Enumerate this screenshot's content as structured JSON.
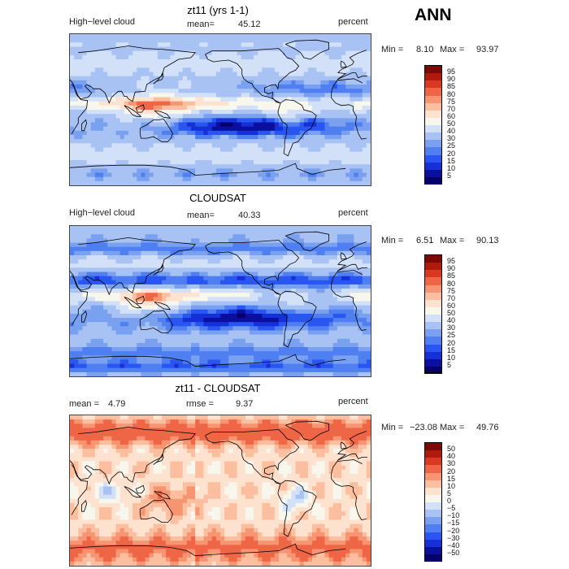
{
  "global_title": "ANN",
  "chart_data": [
    {
      "type": "heatmap",
      "title": "zt11 (yrs 1-1)",
      "variable": "High−level cloud",
      "stat_label": "mean=",
      "stat_value": "45.12",
      "units": "percent",
      "min_label": "Min =",
      "min": "8.10",
      "max_label": "Max =",
      "max": "93.97",
      "colorbar": {
        "levels": [
          "5",
          "10",
          "15",
          "20",
          "25",
          "30",
          "40",
          "50",
          "60",
          "70",
          "75",
          "80",
          "85",
          "90",
          "95"
        ],
        "colors": [
          "#08006a",
          "#0b0f9e",
          "#1430d6",
          "#2956f0",
          "#4f7ff0",
          "#7aa0f0",
          "#a8c2f4",
          "#d2e1f8",
          "#f7f7ee",
          "#fde2cf",
          "#fbbe9e",
          "#f79471",
          "#ef6646",
          "#d93a1f",
          "#b01a0c",
          "#7a0a05"
        ]
      },
      "field": "model"
    },
    {
      "type": "heatmap",
      "title": "CLOUDSAT",
      "variable": "High−level cloud",
      "stat_label": "mean=",
      "stat_value": "40.33",
      "units": "percent",
      "min_label": "Min =",
      "min": "6.51",
      "max_label": "Max =",
      "max": "90.13",
      "colorbar": {
        "levels": [
          "5",
          "10",
          "15",
          "20",
          "25",
          "30",
          "40",
          "50",
          "60",
          "70",
          "75",
          "80",
          "85",
          "90",
          "95"
        ],
        "colors": [
          "#08006a",
          "#0b0f9e",
          "#1430d6",
          "#2956f0",
          "#4f7ff0",
          "#7aa0f0",
          "#a8c2f4",
          "#d2e1f8",
          "#f7f7ee",
          "#fde2cf",
          "#fbbe9e",
          "#f79471",
          "#ef6646",
          "#d93a1f",
          "#b01a0c",
          "#7a0a05"
        ]
      },
      "field": "obs"
    },
    {
      "type": "heatmap",
      "title": "zt11 - CLOUDSAT",
      "variable": "",
      "stat_label": "mean =",
      "stat_value": "4.79",
      "stat2_label": "rmse =",
      "stat2_value": "9.37",
      "units": "percent",
      "min_label": "Min =",
      "min": "−23.08",
      "max_label": "Max =",
      "max": "49.76",
      "colorbar": {
        "levels": [
          "−50",
          "−40",
          "−30",
          "−20",
          "−15",
          "−10",
          "−5",
          "0",
          "5",
          "10",
          "15",
          "20",
          "30",
          "40",
          "50"
        ],
        "colors": [
          "#08006a",
          "#0b0f9e",
          "#1430d6",
          "#2956f0",
          "#4f7ff0",
          "#7aa0f0",
          "#a8c2f4",
          "#d2e1f8",
          "#f7f7ee",
          "#fde2cf",
          "#fbbe9e",
          "#f79471",
          "#ef6646",
          "#d93a1f",
          "#b01a0c",
          "#7a0a05"
        ]
      },
      "field": "diff"
    }
  ]
}
